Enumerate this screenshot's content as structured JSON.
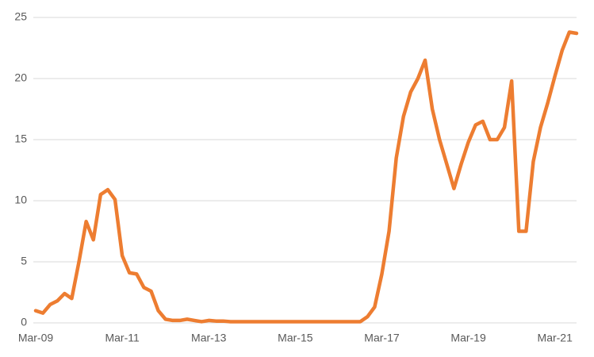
{
  "chart_data": {
    "type": "line",
    "categories": [
      "Mar-09",
      null,
      null,
      null,
      null,
      null,
      null,
      null,
      null,
      null,
      null,
      null,
      "Mar-11",
      null,
      null,
      null,
      null,
      null,
      null,
      null,
      null,
      null,
      null,
      null,
      "Mar-13",
      null,
      null,
      null,
      null,
      null,
      null,
      null,
      null,
      null,
      null,
      null,
      "Mar-15",
      null,
      null,
      null,
      null,
      null,
      null,
      null,
      null,
      null,
      null,
      null,
      "Mar-17",
      null,
      null,
      null,
      null,
      null,
      null,
      null,
      null,
      null,
      null,
      null,
      "Mar-19",
      null,
      null,
      null,
      null,
      null,
      null,
      null,
      null,
      null,
      null,
      null,
      "Mar-21",
      null,
      null,
      null
    ],
    "series": [
      {
        "color": "#ed7d31",
        "values": [
          1.0,
          0.8,
          1.5,
          1.8,
          2.4,
          2.0,
          5.0,
          8.3,
          6.8,
          10.5,
          10.9,
          10.1,
          5.5,
          4.1,
          4.0,
          2.9,
          2.6,
          1.0,
          0.3,
          0.2,
          0.2,
          0.3,
          0.2,
          0.1,
          0.2,
          0.15,
          0.15,
          0.1,
          0.1,
          0.1,
          0.1,
          0.1,
          0.1,
          0.1,
          0.1,
          0.1,
          0.1,
          0.1,
          0.1,
          0.1,
          0.1,
          0.1,
          0.1,
          0.1,
          0.1,
          0.1,
          0.5,
          1.3,
          4.0,
          7.5,
          13.5,
          16.9,
          18.9,
          20.0,
          21.5,
          17.5,
          15.0,
          13.0,
          11.0,
          13.0,
          14.8,
          16.2,
          16.5,
          15.0,
          15.0,
          16.0,
          19.8,
          7.5,
          7.5,
          13.2,
          16.0,
          18.0,
          20.2,
          22.3,
          23.8,
          23.7
        ]
      }
    ],
    "ylim": [
      0,
      25
    ],
    "yticks": [
      0,
      5,
      10,
      15,
      20,
      25
    ],
    "grid": true
  }
}
